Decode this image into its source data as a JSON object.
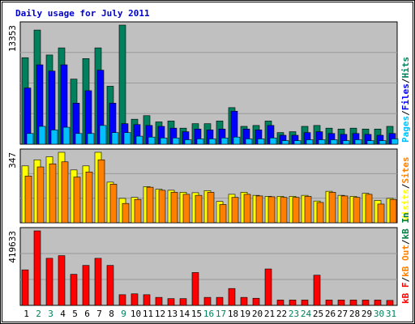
{
  "colors": {
    "background": "#ffffff",
    "frame_border": "#000000",
    "inner_bg": "#c0c0c0",
    "title": "#0000cc",
    "hits": "#00805c",
    "files": "#0000ff",
    "pages": "#00c0ff",
    "visits": "#ffff00",
    "sites": "#ff8000",
    "kbin": "#008040",
    "kbf": "#ff0000",
    "kbout": "#ff8000",
    "weekday": "#000000",
    "weekend": "#00805c"
  },
  "chart_data": [
    {
      "type": "bar",
      "title": "Daily usage for July 2011",
      "panel": "hits-files-pages",
      "max_label": "13353",
      "ylim": [
        0,
        13353
      ],
      "categories": [
        "1",
        "2",
        "3",
        "4",
        "5",
        "6",
        "7",
        "8",
        "9",
        "10",
        "11",
        "12",
        "13",
        "14",
        "15",
        "16",
        "17",
        "18",
        "19",
        "20",
        "21",
        "22",
        "23",
        "24",
        "25",
        "26",
        "27",
        "28",
        "29",
        "30",
        "31"
      ],
      "weekend_days": [
        "2",
        "3",
        "9",
        "16",
        "17",
        "23",
        "24",
        "30",
        "31"
      ],
      "legend": [
        "Pages",
        "Files",
        "Hits"
      ],
      "series": [
        {
          "name": "Hits",
          "values": [
            9700,
            12800,
            10000,
            10800,
            7300,
            9600,
            10800,
            6500,
            13353,
            2800,
            3200,
            2500,
            2600,
            1800,
            2300,
            2300,
            2600,
            4100,
            2000,
            2100,
            2600,
            1300,
            1400,
            2000,
            2100,
            1800,
            1700,
            1800,
            1700,
            1700,
            2000
          ]
        },
        {
          "name": "Files",
          "values": [
            6300,
            8900,
            8200,
            8900,
            4600,
            6000,
            8300,
            4600,
            2300,
            2200,
            2100,
            2000,
            1800,
            1400,
            1700,
            1600,
            1700,
            3700,
            1700,
            1600,
            2100,
            1000,
            1000,
            1300,
            1400,
            1200,
            1100,
            1200,
            1100,
            1000,
            1200
          ]
        },
        {
          "name": "Pages",
          "values": [
            1200,
            2000,
            1600,
            1900,
            1200,
            1200,
            2100,
            1300,
            1300,
            900,
            800,
            700,
            700,
            500,
            600,
            600,
            700,
            800,
            600,
            600,
            700,
            400,
            400,
            500,
            500,
            500,
            400,
            500,
            400,
            400,
            600
          ]
        }
      ]
    },
    {
      "type": "bar",
      "panel": "visits-sites",
      "max_label": "347",
      "ylim": [
        0,
        347
      ],
      "legend": [
        "Visits",
        "Sites"
      ],
      "series": [
        {
          "name": "Visits",
          "values": [
            280,
            310,
            325,
            347,
            260,
            280,
            347,
            200,
            120,
            125,
            178,
            165,
            160,
            150,
            148,
            158,
            105,
            140,
            150,
            135,
            130,
            130,
            130,
            135,
            107,
            155,
            135,
            130,
            145,
            110,
            120
          ]
        },
        {
          "name": "Sites",
          "values": [
            230,
            275,
            290,
            300,
            225,
            250,
            310,
            190,
            95,
            115,
            175,
            160,
            150,
            140,
            135,
            150,
            90,
            125,
            140,
            132,
            128,
            125,
            125,
            130,
            100,
            150,
            132,
            125,
            140,
            92,
            115
          ]
        }
      ]
    },
    {
      "type": "bar",
      "panel": "kbin-kbout-kbf",
      "max_label": "419633",
      "ylim": [
        0,
        419633
      ],
      "legend": [
        "kB F",
        "kB Out",
        "kB In"
      ],
      "series": [
        {
          "name": "kB F",
          "values": [
            200000,
            419633,
            265000,
            280000,
            175000,
            225000,
            265000,
            225000,
            60000,
            65000,
            60000,
            45000,
            38000,
            38000,
            185000,
            45000,
            45000,
            95000,
            45000,
            40000,
            205000,
            30000,
            30000,
            30000,
            170000,
            30000,
            30000,
            30000,
            30000,
            30000,
            28000
          ]
        }
      ]
    }
  ]
}
